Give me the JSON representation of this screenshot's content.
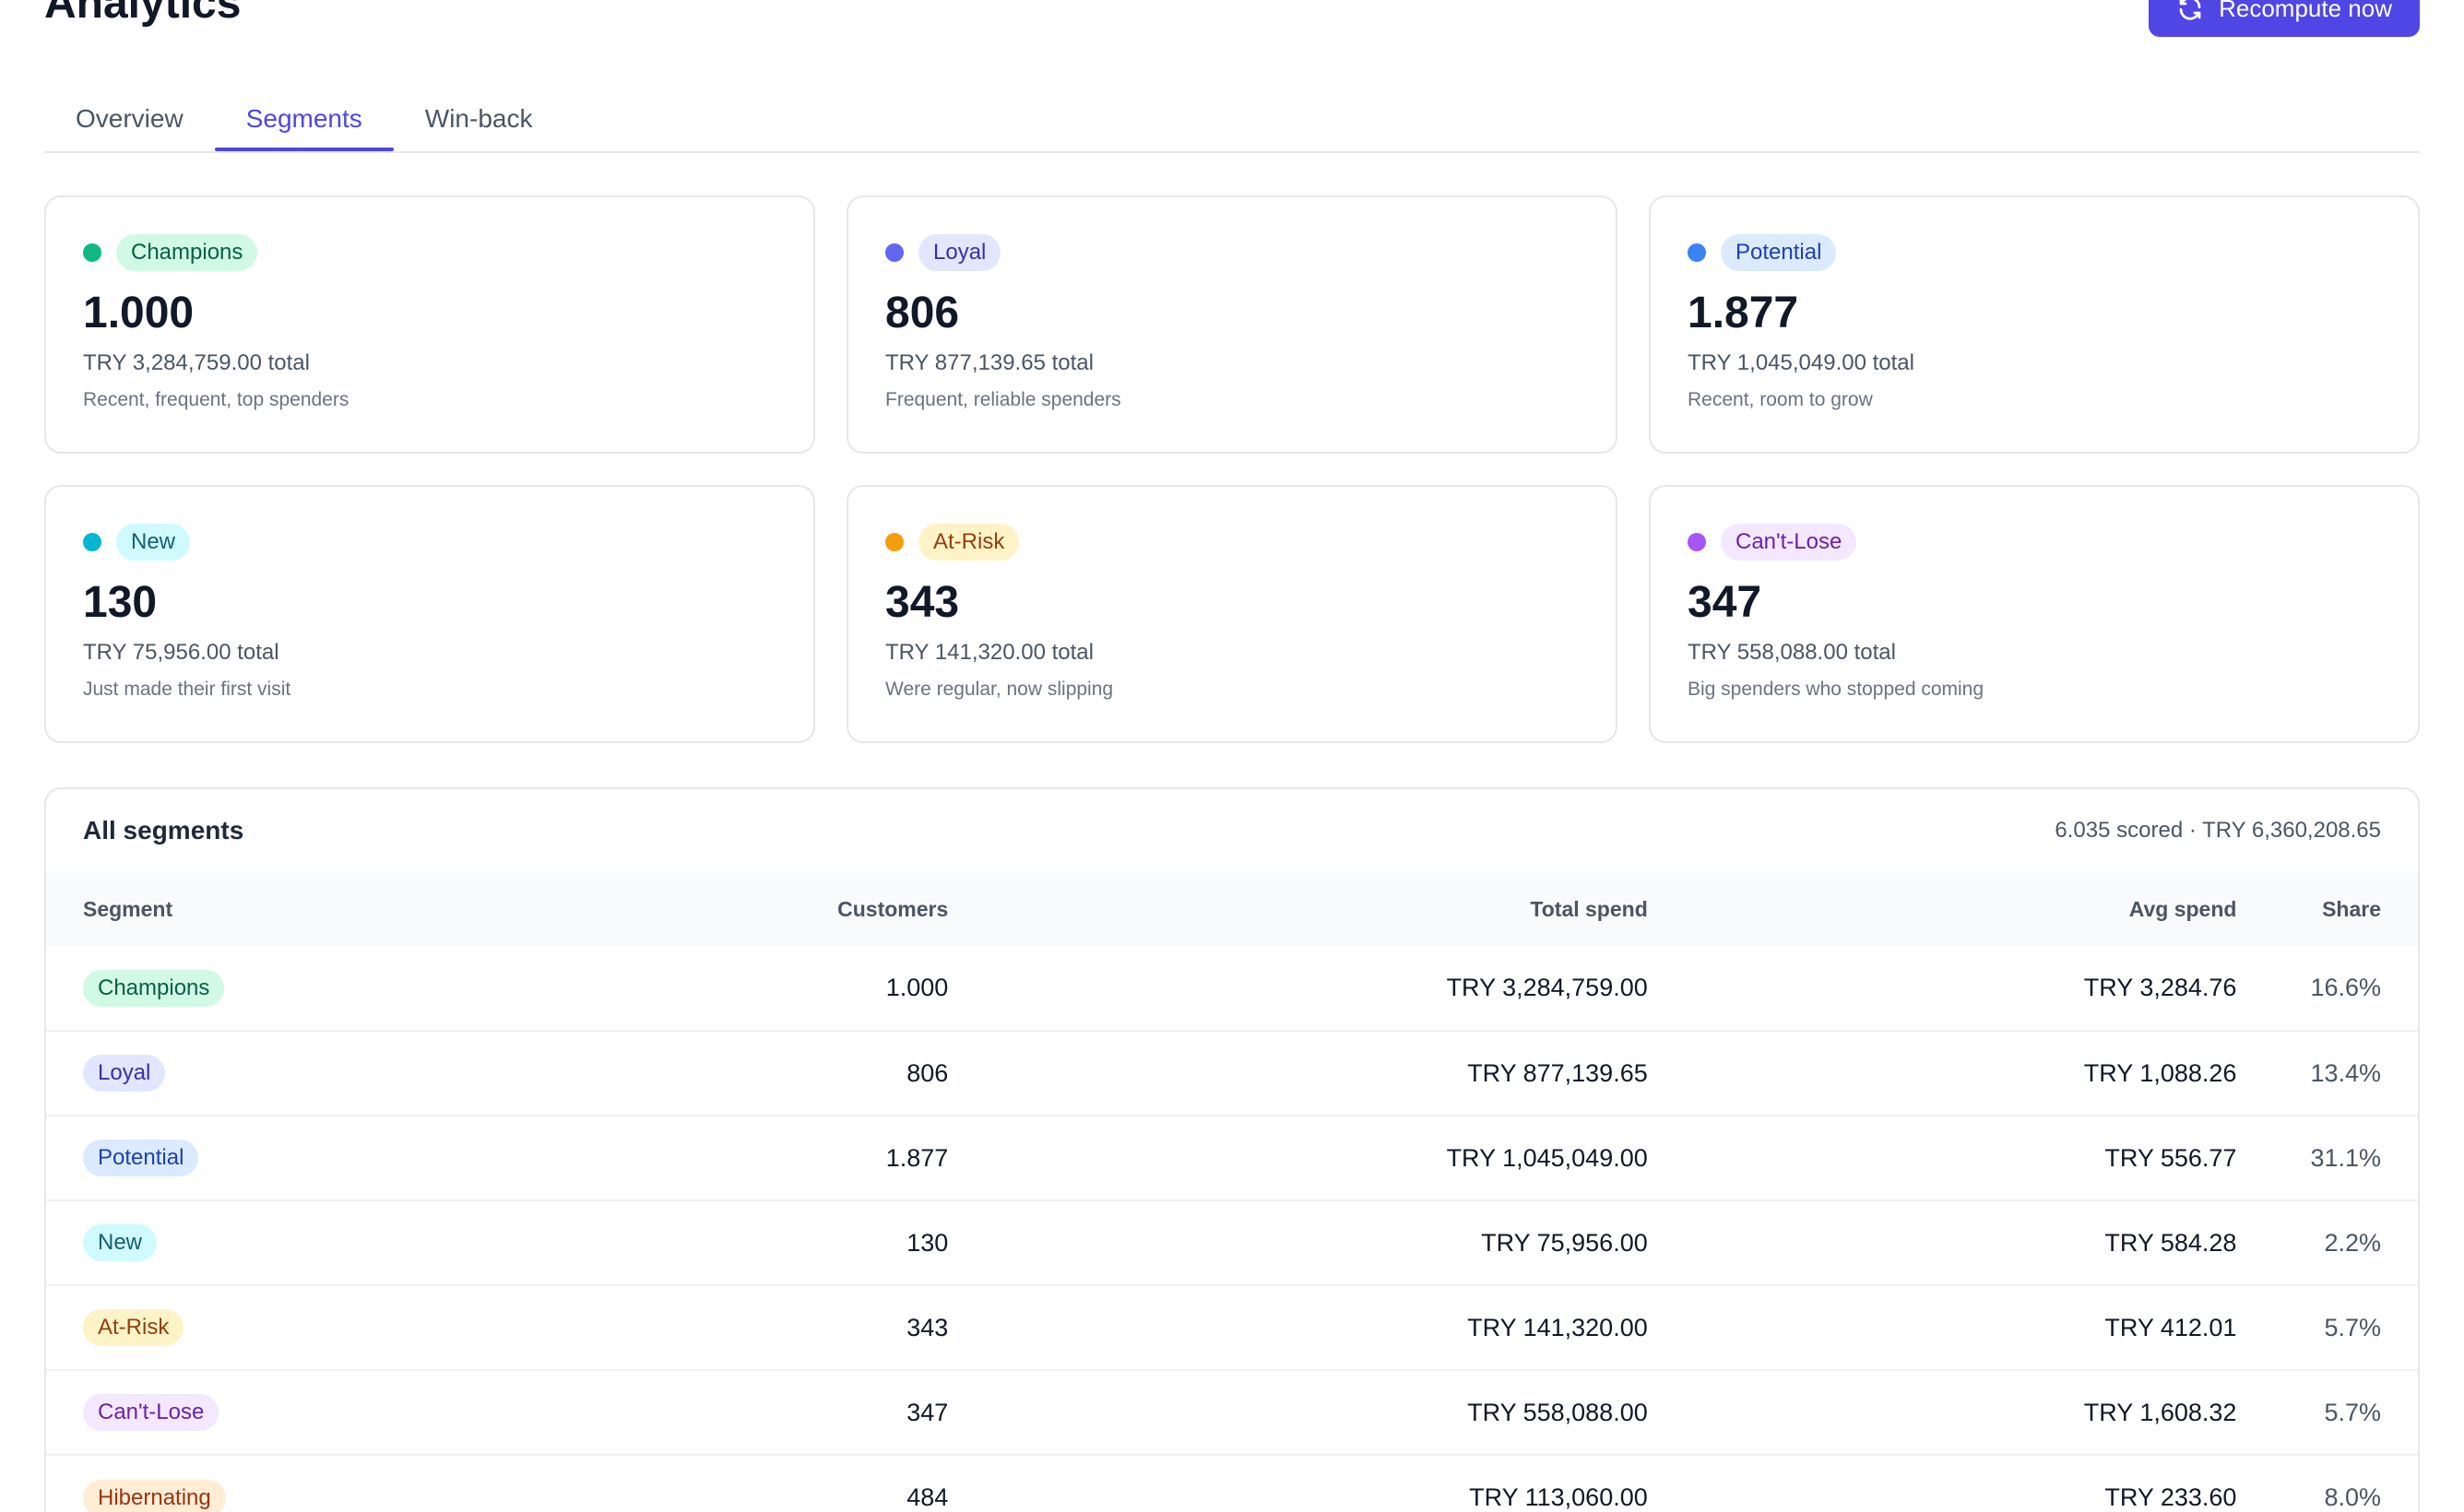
{
  "header": {
    "title": "Analytics",
    "recompute_label": "Recompute now"
  },
  "tabs": [
    {
      "label": "Overview",
      "active": false
    },
    {
      "label": "Segments",
      "active": true
    },
    {
      "label": "Win-back",
      "active": false
    }
  ],
  "colors": {
    "accent": "#4f46e5",
    "champions": "#10b981",
    "loyal": "#6366f1",
    "potential": "#3b82f6",
    "new": "#06b6d4",
    "at_risk": "#f59e0b",
    "cant_lose": "#a855f7",
    "hibernating": "#f97316"
  },
  "cards": [
    {
      "name": "Champions",
      "count": "1.000",
      "total": "TRY 3,284,759.00 total",
      "desc": "Recent, frequent, top spenders",
      "dot": "#10b981",
      "pill_bg": "#d1fae5",
      "pill_fg": "#065f46"
    },
    {
      "name": "Loyal",
      "count": "806",
      "total": "TRY 877,139.65 total",
      "desc": "Frequent, reliable spenders",
      "dot": "#6366f1",
      "pill_bg": "#e0e7ff",
      "pill_fg": "#3730a3"
    },
    {
      "name": "Potential",
      "count": "1.877",
      "total": "TRY 1,045,049.00 total",
      "desc": "Recent, room to grow",
      "dot": "#3b82f6",
      "pill_bg": "#dbeafe",
      "pill_fg": "#1e40af"
    },
    {
      "name": "New",
      "count": "130",
      "total": "TRY 75,956.00 total",
      "desc": "Just made their first visit",
      "dot": "#06b6d4",
      "pill_bg": "#cffafe",
      "pill_fg": "#155e75"
    },
    {
      "name": "At-Risk",
      "count": "343",
      "total": "TRY 141,320.00 total",
      "desc": "Were regular, now slipping",
      "dot": "#f59e0b",
      "pill_bg": "#fef3c7",
      "pill_fg": "#92400e"
    },
    {
      "name": "Can't-Lose",
      "count": "347",
      "total": "TRY 558,088.00 total",
      "desc": "Big spenders who stopped coming",
      "dot": "#a855f7",
      "pill_bg": "#f3e8ff",
      "pill_fg": "#6b21a8"
    }
  ],
  "segments_table": {
    "title": "All segments",
    "meta": "6.035 scored · TRY 6,360,208.65",
    "columns": [
      "Segment",
      "Customers",
      "Total spend",
      "Avg spend",
      "Share"
    ],
    "rows": [
      {
        "segment": "Champions",
        "customers": "1.000",
        "total": "TRY 3,284,759.00",
        "avg": "TRY 3,284.76",
        "share": "16.6%",
        "pill_bg": "#d1fae5",
        "pill_fg": "#065f46"
      },
      {
        "segment": "Loyal",
        "customers": "806",
        "total": "TRY 877,139.65",
        "avg": "TRY 1,088.26",
        "share": "13.4%",
        "pill_bg": "#e0e7ff",
        "pill_fg": "#3730a3"
      },
      {
        "segment": "Potential",
        "customers": "1.877",
        "total": "TRY 1,045,049.00",
        "avg": "TRY 556.77",
        "share": "31.1%",
        "pill_bg": "#dbeafe",
        "pill_fg": "#1e40af"
      },
      {
        "segment": "New",
        "customers": "130",
        "total": "TRY 75,956.00",
        "avg": "TRY 584.28",
        "share": "2.2%",
        "pill_bg": "#cffafe",
        "pill_fg": "#155e75"
      },
      {
        "segment": "At-Risk",
        "customers": "343",
        "total": "TRY 141,320.00",
        "avg": "TRY 412.01",
        "share": "5.7%",
        "pill_bg": "#fef3c7",
        "pill_fg": "#92400e"
      },
      {
        "segment": "Can't-Lose",
        "customers": "347",
        "total": "TRY 558,088.00",
        "avg": "TRY 1,608.32",
        "share": "5.7%",
        "pill_bg": "#f3e8ff",
        "pill_fg": "#6b21a8"
      },
      {
        "segment": "Hibernating",
        "customers": "484",
        "total": "TRY 113,060.00",
        "avg": "TRY 233.60",
        "share": "8.0%",
        "pill_bg": "#ffedd5",
        "pill_fg": "#9a3412"
      }
    ]
  }
}
